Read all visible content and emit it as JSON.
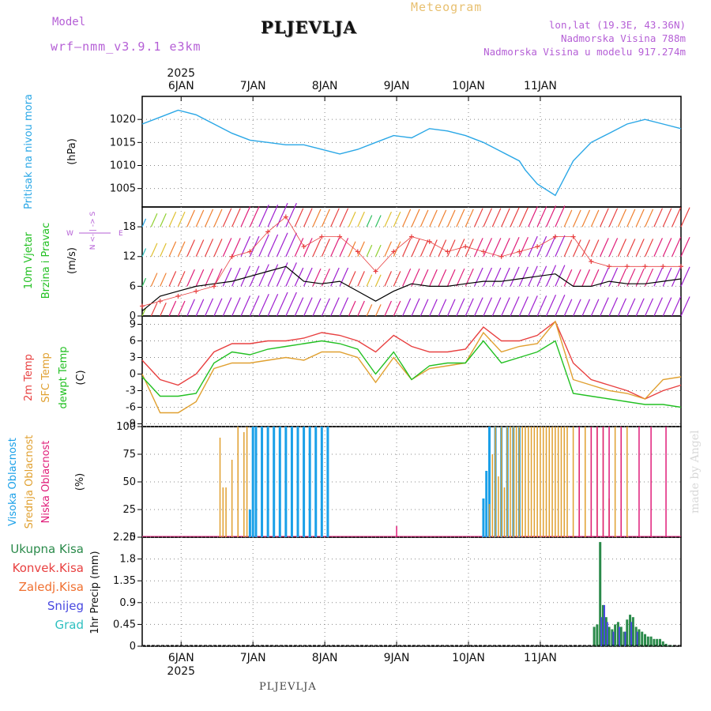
{
  "header": {
    "model_label": "Model",
    "model_name": "wrf—nmm_v3.9.1  e3km",
    "title": "PLJEVLJA",
    "meteogram": "Meteogram",
    "lonlat": "lon,lat (19.3E, 43.36N)",
    "elevation": "Nadmorska Visina 788m",
    "model_elevation": "Nadmorska Visina u modelu 917.274m"
  },
  "footer_station": "PLJEVLJA",
  "watermark": "made by Angel",
  "colors": {
    "pressure": "#2aa7e6",
    "temp": "#e84040",
    "sfc": "#e0a030",
    "dewpt": "#22c022",
    "high_cloud": "#1aa0e8",
    "mid_cloud": "#e0a030",
    "low_cloud": "#e01e7a",
    "total_precip": "#2a8a4a",
    "conv_precip": "#e84040",
    "frz_precip": "#f07030",
    "snow": "#4848e0",
    "hail": "#30c0c0",
    "purple": "#b55fd6"
  },
  "chart_data": [
    {
      "type": "line",
      "id": "pressure",
      "ylabel": "Pritisak na nivou mora",
      "unit": "(hPa)",
      "year_top": "2025",
      "year_bottom": "2025",
      "x_ticks": [
        "6JAN",
        "7JAN",
        "8JAN",
        "9JAN",
        "10JAN",
        "11JAN"
      ],
      "ylim": [
        1001,
        1025
      ],
      "yticks": [
        1005,
        1010,
        1015,
        1020
      ],
      "series": [
        {
          "name": "Pritisak",
          "x": [
            0,
            6,
            12,
            18,
            24,
            30,
            36,
            42,
            48,
            54,
            60,
            66,
            72,
            78,
            84,
            90,
            96,
            102,
            108,
            114,
            120,
            126,
            128,
            132,
            138,
            144,
            150,
            156,
            162,
            168,
            174,
            180
          ],
          "values": [
            1019,
            1020.5,
            1022,
            1021,
            1019,
            1017,
            1015.5,
            1015,
            1014.5,
            1014.5,
            1013.5,
            1012.5,
            1013.5,
            1015,
            1016.5,
            1016,
            1018,
            1017.5,
            1016.5,
            1015,
            1013,
            1011,
            1009,
            1006,
            1003.5,
            1011,
            1015,
            1017,
            1019,
            1020,
            1019,
            1018
          ]
        }
      ]
    },
    {
      "type": "line",
      "id": "wind",
      "ylabel": "10m Vjetar",
      "ylabel2": "Brzina i Pravac",
      "unit": "(m/s)",
      "compass": {
        "n": "N",
        "s": "S",
        "e": "E",
        "w": "W",
        "arrow_top": "N <- | -> S",
        "arrow_left": "W",
        "arrow_right": "E"
      },
      "ylim": [
        0,
        22
      ],
      "yticks": [
        0,
        6,
        12,
        18
      ],
      "series": [
        {
          "name": "Brzina",
          "x": [
            0,
            6,
            12,
            18,
            24,
            30,
            36,
            42,
            48,
            54,
            60,
            66,
            72,
            78,
            84,
            90,
            96,
            102,
            108,
            114,
            120,
            126,
            132,
            138,
            144,
            150,
            156,
            162,
            168,
            174,
            180
          ],
          "values": [
            1,
            4,
            5,
            6,
            6.5,
            7,
            8,
            9,
            10,
            7,
            6.5,
            7,
            5,
            3,
            5,
            6.5,
            6,
            6,
            6.5,
            7,
            7,
            7.5,
            8,
            8.5,
            6,
            6,
            7,
            6.5,
            6.5,
            7,
            7.5
          ]
        },
        {
          "name": "Udari",
          "x": [
            0,
            6,
            12,
            18,
            24,
            30,
            36,
            42,
            48,
            54,
            60,
            66,
            72,
            78,
            84,
            90,
            96,
            102,
            108,
            114,
            120,
            126,
            132,
            138,
            144,
            150,
            156,
            162,
            168,
            174,
            180
          ],
          "values": [
            2,
            3,
            4,
            5,
            6,
            12,
            13,
            17,
            20,
            14,
            16,
            16,
            13,
            9,
            13,
            16,
            15,
            13,
            14,
            13,
            12,
            13,
            14,
            16,
            16,
            11,
            10,
            10,
            10,
            10,
            10
          ]
        }
      ]
    },
    {
      "type": "line",
      "id": "temperature",
      "ylabel": "2m Temp",
      "ylabel2": "SFC Temp",
      "ylabel3": "dewpt Temp",
      "unit": "(C)",
      "ylim": [
        -9.5,
        10.5
      ],
      "yticks": [
        -9,
        -6,
        -3,
        0,
        3,
        6,
        9
      ],
      "series": [
        {
          "name": "2m Temp",
          "x": [
            0,
            6,
            12,
            18,
            24,
            30,
            36,
            42,
            48,
            54,
            60,
            66,
            72,
            78,
            84,
            90,
            96,
            102,
            108,
            114,
            120,
            126,
            132,
            138,
            144,
            150,
            156,
            162,
            168,
            174,
            180
          ],
          "values": [
            2.5,
            -1,
            -2,
            0,
            4,
            5.5,
            5.5,
            6,
            6,
            6.5,
            7.5,
            7,
            6,
            4,
            7,
            5,
            4,
            4,
            4.5,
            8.5,
            6,
            6,
            7,
            9.5,
            2,
            -1,
            -2,
            -3,
            -4.5,
            -3,
            -2
          ]
        },
        {
          "name": "SFC Temp",
          "x": [
            0,
            6,
            12,
            18,
            24,
            30,
            36,
            42,
            48,
            54,
            60,
            66,
            72,
            78,
            84,
            90,
            96,
            102,
            108,
            114,
            120,
            126,
            132,
            138,
            144,
            150,
            156,
            162,
            168,
            174,
            180
          ],
          "values": [
            0,
            -7,
            -7,
            -5,
            1,
            2,
            2,
            2.5,
            3,
            2.5,
            4,
            4,
            3,
            -1.5,
            3,
            -1,
            1,
            1.5,
            2,
            7.5,
            4,
            5,
            5.5,
            9.5,
            -1,
            -2,
            -3,
            -3.5,
            -4.5,
            -1,
            -0.5
          ]
        },
        {
          "name": "dewpt Temp",
          "x": [
            0,
            6,
            12,
            18,
            24,
            30,
            36,
            42,
            48,
            54,
            60,
            66,
            72,
            78,
            84,
            90,
            96,
            102,
            108,
            114,
            120,
            126,
            132,
            138,
            144,
            150,
            156,
            162,
            168,
            174,
            180
          ],
          "values": [
            -0.5,
            -4,
            -4,
            -3.5,
            2,
            4,
            3.5,
            4.5,
            5,
            5.5,
            6,
            5.5,
            4.5,
            0,
            4,
            -1,
            1.5,
            2,
            2,
            6,
            2,
            3,
            4,
            6,
            -3.5,
            -4,
            -4.5,
            -5,
            -5.5,
            -5.5,
            -6
          ]
        }
      ]
    },
    {
      "type": "bar",
      "id": "clouds",
      "ylabel": "Visoka Oblacnost",
      "ylabel2": "Srednja Oblacnost",
      "ylabel3": "Niska Oblacnost",
      "unit": "(%)",
      "ylim": [
        0,
        100
      ],
      "yticks": [
        0,
        25,
        50,
        75,
        100
      ],
      "series": [
        {
          "name": "Visoka",
          "x": [
            36,
            37,
            38,
            40,
            42,
            44,
            46,
            48,
            50,
            52,
            54,
            56,
            58,
            60,
            62,
            114,
            115,
            116,
            118,
            120,
            122,
            124,
            126
          ],
          "values": [
            25,
            100,
            100,
            100,
            100,
            100,
            100,
            100,
            100,
            100,
            100,
            100,
            100,
            100,
            100,
            35,
            60,
            100,
            100,
            100,
            100,
            100,
            100
          ]
        },
        {
          "name": "Srednja",
          "x": [
            26,
            27,
            28,
            30,
            32,
            34,
            35,
            116,
            117,
            118,
            119,
            120,
            121,
            122,
            123,
            124,
            125,
            126,
            127,
            128,
            129,
            130,
            131,
            132,
            133,
            134,
            135,
            136,
            137,
            138,
            139,
            140,
            141,
            142,
            144,
            146,
            148,
            150,
            152,
            154,
            156,
            158,
            160,
            162
          ],
          "values": [
            90,
            45,
            45,
            70,
            100,
            95,
            100,
            30,
            75,
            100,
            55,
            100,
            45,
            100,
            100,
            100,
            100,
            100,
            100,
            100,
            100,
            100,
            100,
            100,
            100,
            100,
            100,
            100,
            100,
            100,
            100,
            100,
            100,
            100,
            100,
            100,
            100,
            100,
            100,
            100,
            35,
            100,
            100,
            100
          ]
        },
        {
          "name": "Niska",
          "x": [
            85,
            146,
            150,
            152,
            154,
            156,
            160,
            166,
            170,
            175
          ],
          "values": [
            10,
            100,
            100,
            100,
            100,
            100,
            100,
            100,
            100,
            100
          ]
        }
      ]
    },
    {
      "type": "bar",
      "id": "precip",
      "ylabel": "1hr Precip (mm)",
      "legend": [
        "Ukupna  Kisa",
        "Konvek.Kisa",
        "Zaledj.Kisa",
        "Snijeg",
        "Grad"
      ],
      "ylim": [
        0,
        2.25
      ],
      "yticks": [
        0,
        0.45,
        0.9,
        1.35,
        1.8,
        2.25
      ],
      "tick_labels": [
        "0",
        "0.45",
        "0.9",
        "1.35",
        "1.8",
        "2.25"
      ],
      "series": [
        {
          "name": "Ukupna Kisa",
          "x": [
            151,
            152,
            153,
            154,
            155,
            156,
            157,
            158,
            159,
            160,
            161,
            162,
            163,
            164,
            165,
            166,
            167,
            168,
            169,
            170,
            171,
            172,
            173,
            174,
            175,
            176,
            177
          ],
          "values": [
            0.4,
            0.45,
            2.15,
            0.85,
            0.6,
            0.4,
            0.35,
            0.45,
            0.5,
            0.4,
            0.3,
            0.55,
            0.65,
            0.6,
            0.4,
            0.35,
            0.3,
            0.25,
            0.2,
            0.2,
            0.15,
            0.15,
            0.15,
            0.1,
            0.05,
            0.02,
            0.01
          ]
        },
        {
          "name": "Snijeg",
          "x": [
            153,
            154,
            155,
            157,
            159,
            161,
            163,
            165
          ],
          "values": [
            0.6,
            0.85,
            0.5,
            0.3,
            0.4,
            0.3,
            0.5,
            0.3
          ]
        }
      ]
    }
  ]
}
